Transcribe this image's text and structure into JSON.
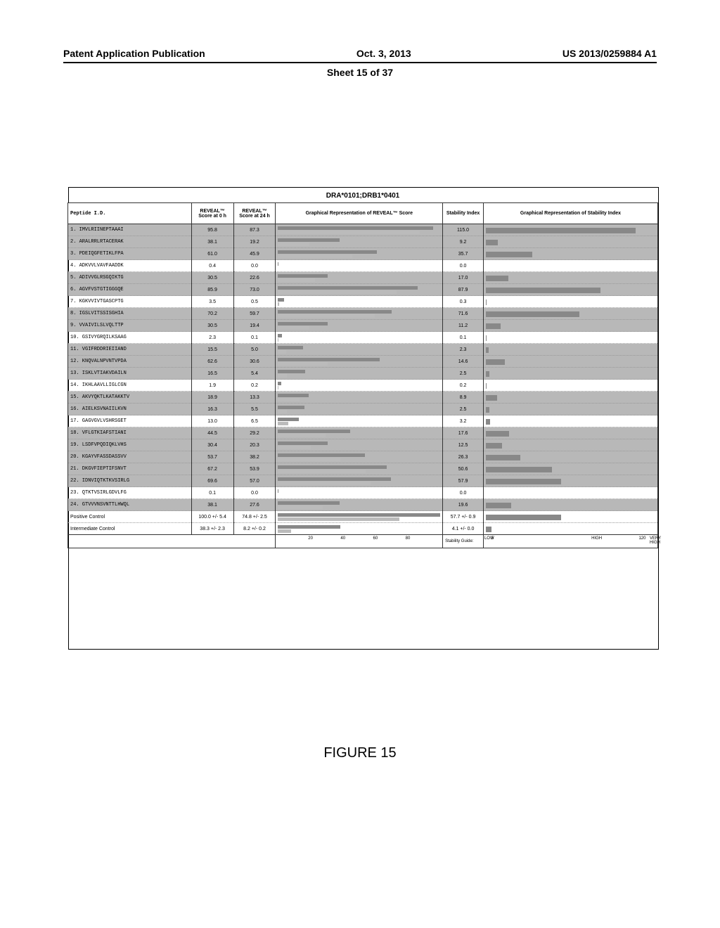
{
  "header": {
    "left": "Patent Application Publication",
    "center": "Oct. 3, 2013",
    "sheet": "Sheet 15 of 37",
    "right": "US 2013/0259884 A1"
  },
  "figure": {
    "caption": "FIGURE 15",
    "title": "DRA*0101;DRB1*0401",
    "columns": {
      "peptide": "Peptide I.D.",
      "score0": "REVEAL™ Score at 0 h",
      "score24": "REVEAL™ Score at 24 h",
      "bar": "Graphical Representation of REVEAL™ Score",
      "stability": "Stability Index",
      "stabbar": "Graphical Representation of Stability Index"
    },
    "reveal_bar": {
      "min": 0,
      "max": 100,
      "ticks": [
        20,
        40,
        60,
        80
      ],
      "color0": "#888888",
      "color24": "#bbbbbb"
    },
    "stab_bar": {
      "min": 0,
      "max": 130,
      "ticks": [
        {
          "v": 5,
          "label": "5"
        },
        {
          "v": 85,
          "label": "HIGH"
        },
        {
          "v": 120,
          "label": "120"
        },
        {
          "v": 130,
          "label": "VERY HIGH"
        }
      ],
      "guide_label": "Stability Guide:",
      "low_label": "LOW",
      "color": "#888888"
    },
    "row_shading": {
      "shaded": "#b8b8b8",
      "plain": "#ffffff"
    },
    "rows": [
      {
        "n": 1,
        "seq": "IMVLRIINEPTAAAI",
        "s0": "95.8",
        "s24": "87.3",
        "stab": "115.0",
        "shaded": true
      },
      {
        "n": 2,
        "seq": "ARALRRLRTACERAK",
        "s0": "38.1",
        "s24": "19.2",
        "stab": "9.2",
        "shaded": true
      },
      {
        "n": 3,
        "seq": "PDEIQGFETIKLFPA",
        "s0": "61.0",
        "s24": "45.9",
        "stab": "35.7",
        "shaded": true
      },
      {
        "n": 4,
        "seq": "ADKVVLVAVFAADDK",
        "s0": "0.4",
        "s24": "0.0",
        "stab": "0.0",
        "shaded": false
      },
      {
        "n": 5,
        "seq": "ADIVVGLRSGQIKTG",
        "s0": "30.5",
        "s24": "22.6",
        "stab": "17.0",
        "shaded": true
      },
      {
        "n": 6,
        "seq": "AGVFVSTGTIGGGQE",
        "s0": "85.9",
        "s24": "73.0",
        "stab": "87.9",
        "shaded": true
      },
      {
        "n": 7,
        "seq": "KGKVVIVTGASCPTG",
        "s0": "3.5",
        "s24": "0.5",
        "stab": "0.3",
        "shaded": false
      },
      {
        "n": 8,
        "seq": "IGSLVITSSISGHIA",
        "s0": "70.2",
        "s24": "59.7",
        "stab": "71.6",
        "shaded": true
      },
      {
        "n": 9,
        "seq": "VVAIVILSLVQLTTP",
        "s0": "30.5",
        "s24": "19.4",
        "stab": "11.2",
        "shaded": true
      },
      {
        "n": 10,
        "seq": "GSIVYGRQILKSAAG",
        "s0": "2.3",
        "s24": "0.1",
        "stab": "0.1",
        "shaded": false
      },
      {
        "n": 11,
        "seq": "VGIFRDDRIEIIAND",
        "s0": "15.5",
        "s24": "5.0",
        "stab": "2.3",
        "shaded": true
      },
      {
        "n": 12,
        "seq": "KNQVALNPVNTVPDA",
        "s0": "62.6",
        "s24": "30.6",
        "stab": "14.6",
        "shaded": true
      },
      {
        "n": 13,
        "seq": "ISKLVTIAKVDAILN",
        "s0": "16.5",
        "s24": "5.4",
        "stab": "2.5",
        "shaded": true
      },
      {
        "n": 14,
        "seq": "IKHLAAVLLIGLCGN",
        "s0": "1.9",
        "s24": "0.2",
        "stab": "0.2",
        "shaded": false
      },
      {
        "n": 15,
        "seq": "AKVYQKTLKATAKKTV",
        "s0": "18.9",
        "s24": "13.3",
        "stab": "8.9",
        "shaded": true
      },
      {
        "n": 16,
        "seq": "AIELKSVNAIILKVN",
        "s0": "16.3",
        "s24": "5.5",
        "stab": "2.5",
        "shaded": true
      },
      {
        "n": 17,
        "seq": "GAGVGVLVSHRSGET",
        "s0": "13.0",
        "s24": "6.5",
        "stab": "3.2",
        "shaded": false
      },
      {
        "n": 18,
        "seq": "VFLGTKIAFSTIANI",
        "s0": "44.5",
        "s24": "29.2",
        "stab": "17.6",
        "shaded": true
      },
      {
        "n": 19,
        "seq": "LSDFVPQDIQKLVHS",
        "s0": "30.4",
        "s24": "20.3",
        "stab": "12.5",
        "shaded": true
      },
      {
        "n": 20,
        "seq": "KGAYVFASSDASSVV",
        "s0": "53.7",
        "s24": "38.2",
        "stab": "26.3",
        "shaded": true
      },
      {
        "n": 21,
        "seq": "DKGVFIEPTIFSNVT",
        "s0": "67.2",
        "s24": "53.9",
        "stab": "50.6",
        "shaded": true
      },
      {
        "n": 22,
        "seq": "IDNVIQTKTKVSIRLG",
        "s0": "69.6",
        "s24": "57.0",
        "stab": "57.9",
        "shaded": true
      },
      {
        "n": 23,
        "seq": "QTKTVSIRLGDVLFG",
        "s0": "0.1",
        "s24": "0.0",
        "stab": "0.0",
        "shaded": false
      },
      {
        "n": 24,
        "seq": "GTVVVNSVNTTLHWQL",
        "s0": "38.1",
        "s24": "27.6",
        "stab": "19.6",
        "shaded": true
      }
    ],
    "controls": [
      {
        "label": "Positive Control",
        "s0": "100.0 +/- 5.4",
        "s24": "74.8 +/- 2.5",
        "stab": "57.7 +/- 0.9"
      },
      {
        "label": "Intermediate Control",
        "s0": "38.3 +/- 2.3",
        "s24": "8.2 +/- 0.2",
        "stab": "4.1 +/- 0.0"
      }
    ]
  }
}
